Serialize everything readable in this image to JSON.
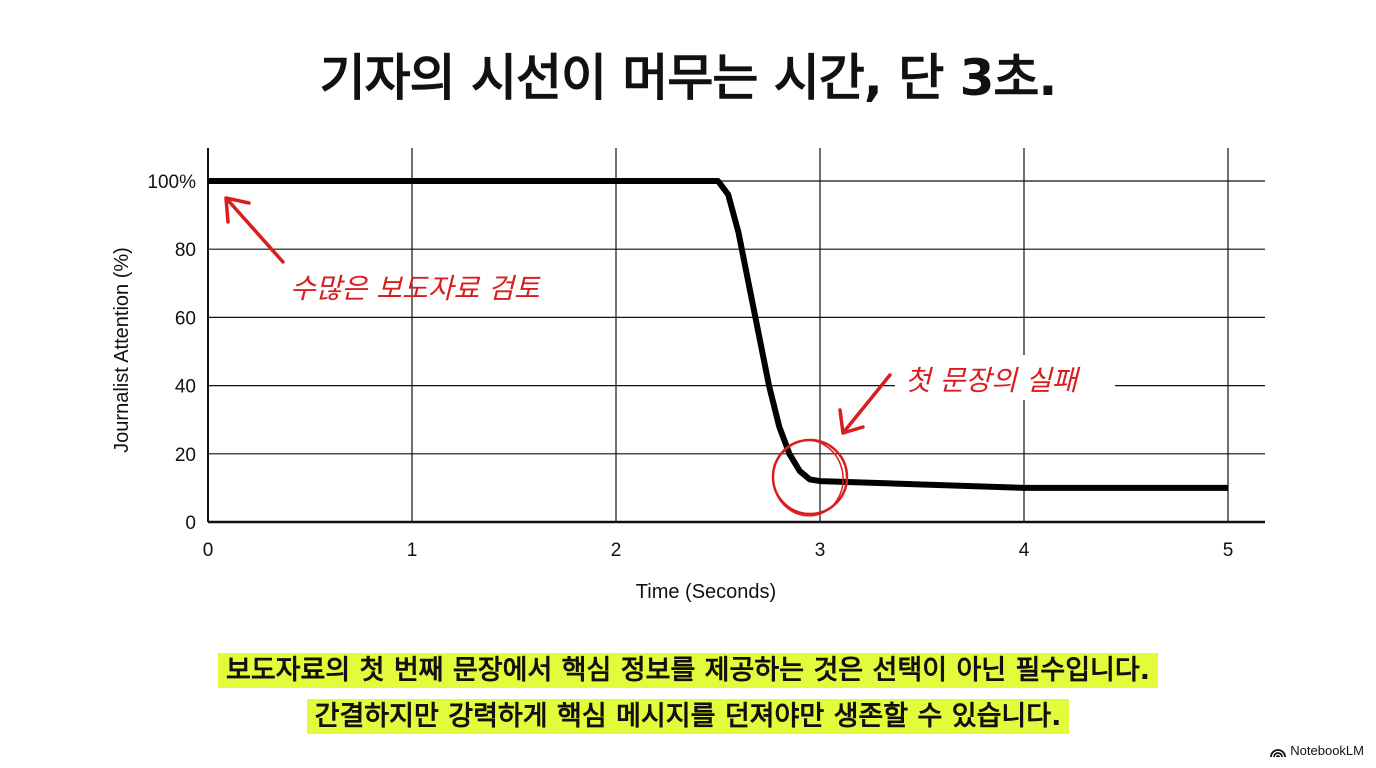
{
  "title": "기자의 시선이 머무는 시간, 단 3초.",
  "chart_data": {
    "type": "line",
    "xlabel": "Time (Seconds)",
    "ylabel": "Journalist Attention (%)",
    "xlim": [
      0,
      5.18
    ],
    "ylim": [
      0,
      110
    ],
    "xticks": [
      "0",
      "1",
      "2",
      "3",
      "4",
      "5"
    ],
    "yticks": [
      "0",
      "20",
      "40",
      "60",
      "80",
      "100%"
    ],
    "grid": true,
    "line_color": "#000000",
    "x": [
      0,
      2.5,
      2.55,
      2.6,
      2.65,
      2.7,
      2.75,
      2.8,
      2.85,
      2.9,
      2.95,
      3.0,
      3.5,
      4.0,
      5.0
    ],
    "y": [
      100,
      100,
      96,
      85,
      70,
      55,
      40,
      28,
      20,
      15,
      12.5,
      12,
      11,
      10,
      10
    ],
    "annotations": [
      {
        "text": "수많은 보도자료 검토",
        "points_to": [
          0,
          100
        ],
        "color": "#d81e1e"
      },
      {
        "text": "첫 문장의 실패",
        "points_to": [
          3,
          12
        ],
        "color": "#d81e1e",
        "circled": true
      }
    ]
  },
  "caption": {
    "line1": "보도자료의 첫 번째 문장에서 핵심 정보를 제공하는 것은 선택이 아닌 필수입니다.",
    "line2": "간결하지만 강력하게 핵심 메시지를 던져야만 생존할 수 있습니다."
  },
  "branding": {
    "label": "NotebookLM",
    "icon": "notebooklm-logo-icon"
  }
}
